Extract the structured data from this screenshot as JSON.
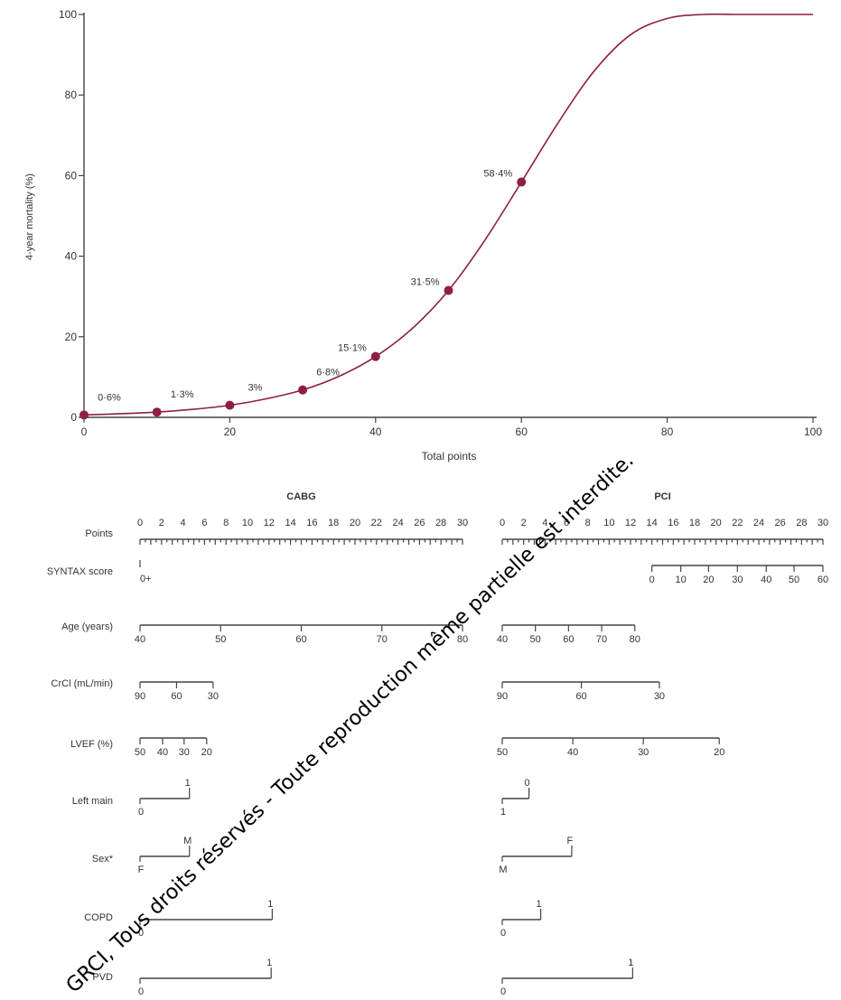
{
  "chart_data": [
    {
      "type": "line",
      "ylabel": "4-year mortality (%)",
      "xlabel": "Total points",
      "xlim": [
        0,
        100
      ],
      "ylim": [
        0,
        100
      ],
      "xticks": [
        0,
        20,
        40,
        60,
        80,
        100
      ],
      "yticks": [
        0,
        20,
        40,
        60,
        80,
        100
      ],
      "series": [
        {
          "values_xy": [
            [
              0,
              0.6
            ],
            [
              5,
              0.9
            ],
            [
              10,
              1.3
            ],
            [
              15,
              2.0
            ],
            [
              20,
              3.0
            ],
            [
              25,
              4.6
            ],
            [
              30,
              6.8
            ],
            [
              35,
              10.2
            ],
            [
              40,
              15.1
            ],
            [
              45,
              22.0
            ],
            [
              50,
              31.5
            ],
            [
              55,
              44.0
            ],
            [
              60,
              58.4
            ],
            [
              65,
              73.0
            ],
            [
              70,
              86.0
            ],
            [
              75,
              95.0
            ],
            [
              80,
              99.0
            ],
            [
              85,
              100
            ],
            [
              90,
              100
            ],
            [
              100,
              100
            ]
          ]
        }
      ],
      "points": [
        {
          "x": 0,
          "y": 0.6,
          "label": "0·6%"
        },
        {
          "x": 10,
          "y": 1.3,
          "label": "1·3%"
        },
        {
          "x": 20,
          "y": 3.0,
          "label": "3%"
        },
        {
          "x": 30,
          "y": 6.8,
          "label": "6·8%"
        },
        {
          "x": 40,
          "y": 15.1,
          "label": "15·1%"
        },
        {
          "x": 50,
          "y": 31.5,
          "label": "31·5%"
        },
        {
          "x": 60,
          "y": 58.4,
          "label": "58·4%"
        }
      ],
      "colors": {
        "curve": "#8e1f3f",
        "axis": "#444444"
      }
    },
    {
      "type": "nomogram",
      "groups": [
        {
          "id": "cabg",
          "title": "CABG"
        },
        {
          "id": "pci",
          "title": "PCI"
        }
      ],
      "points_scale": {
        "label": "Points",
        "min": 0,
        "max": 30,
        "tick_labels": [
          "0",
          "2",
          "4",
          "6",
          "8",
          "10",
          "12",
          "14",
          "16",
          "18",
          "20",
          "22",
          "24",
          "26",
          "28",
          "30"
        ]
      },
      "variables": [
        {
          "label": "SYNTAX score",
          "cabg": {
            "ticks": [
              {
                "value": "0+",
                "points": 0
              }
            ]
          },
          "pci": {
            "ticks": [
              {
                "value": "0",
                "points": 14
              },
              {
                "value": "10",
                "points": 16.7
              },
              {
                "value": "20",
                "points": 19.3
              },
              {
                "value": "30",
                "points": 22.0
              },
              {
                "value": "40",
                "points": 24.7
              },
              {
                "value": "50",
                "points": 27.3
              },
              {
                "value": "60",
                "points": 30
              }
            ]
          }
        },
        {
          "label": "Age (years)",
          "cabg": {
            "ticks": [
              {
                "value": "40",
                "points": 0
              },
              {
                "value": "50",
                "points": 7.5
              },
              {
                "value": "60",
                "points": 15
              },
              {
                "value": "70",
                "points": 22.5
              },
              {
                "value": "80",
                "points": 30
              }
            ]
          },
          "pci": {
            "ticks": [
              {
                "value": "40",
                "points": 0
              },
              {
                "value": "50",
                "points": 3.1
              },
              {
                "value": "60",
                "points": 6.2
              },
              {
                "value": "70",
                "points": 9.3
              },
              {
                "value": "80",
                "points": 12.4
              }
            ]
          }
        },
        {
          "label": "CrCl (mL/min)",
          "cabg": {
            "ticks": [
              {
                "value": "90",
                "points": 0
              },
              {
                "value": "60",
                "points": 3.4
              },
              {
                "value": "30",
                "points": 6.8
              }
            ]
          },
          "pci": {
            "ticks": [
              {
                "value": "90",
                "points": 0
              },
              {
                "value": "60",
                "points": 7.4
              },
              {
                "value": "30",
                "points": 14.7
              }
            ]
          }
        },
        {
          "label": "LVEF (%)",
          "cabg": {
            "ticks": [
              {
                "value": "50",
                "points": 0
              },
              {
                "value": "40",
                "points": 2.1
              },
              {
                "value": "30",
                "points": 4.1
              },
              {
                "value": "20",
                "points": 6.2
              }
            ]
          },
          "pci": {
            "ticks": [
              {
                "value": "50",
                "points": 0
              },
              {
                "value": "40",
                "points": 6.6
              },
              {
                "value": "30",
                "points": 13.2
              },
              {
                "value": "20",
                "points": 20.3
              }
            ]
          }
        },
        {
          "label": "Left main",
          "cabg": {
            "ticks": [
              {
                "value": "0",
                "points": 0
              },
              {
                "value": "1",
                "points": 4.6
              }
            ]
          },
          "pci": {
            "ticks": [
              {
                "value": "1",
                "points": 0
              },
              {
                "value": "0",
                "points": 2.5
              }
            ]
          }
        },
        {
          "label": "Sex*",
          "cabg": {
            "ticks": [
              {
                "value": "F",
                "points": 0
              },
              {
                "value": "M",
                "points": 4.6
              }
            ]
          },
          "pci": {
            "ticks": [
              {
                "value": "M",
                "points": 0
              },
              {
                "value": "F",
                "points": 6.5
              }
            ]
          }
        },
        {
          "label": "COPD",
          "cabg": {
            "ticks": [
              {
                "value": "0",
                "points": 0
              },
              {
                "value": "1",
                "points": 12.3
              }
            ]
          },
          "pci": {
            "ticks": [
              {
                "value": "0",
                "points": 0
              },
              {
                "value": "1",
                "points": 3.6
              }
            ]
          }
        },
        {
          "label": "PVD",
          "cabg": {
            "ticks": [
              {
                "value": "0",
                "points": 0
              },
              {
                "value": "1",
                "points": 12.2
              }
            ]
          },
          "pci": {
            "ticks": [
              {
                "value": "0",
                "points": 0
              },
              {
                "value": "1",
                "points": 12.2
              }
            ]
          }
        }
      ]
    }
  ],
  "watermark": {
    "text": "GRCI, Tous droits réservés - Toute reproduction même partielle est interdite."
  }
}
